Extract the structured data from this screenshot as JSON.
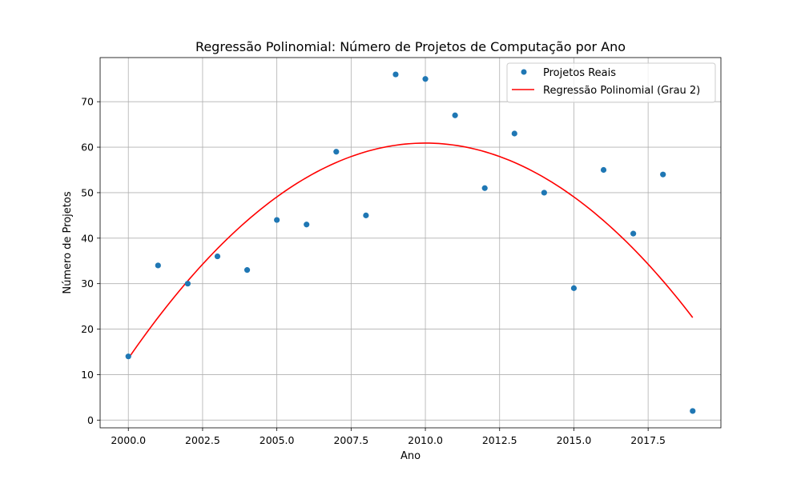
{
  "chart_data": {
    "type": "scatter",
    "title": "Regressão Polinomial: Número de Projetos de Computação por Ano",
    "xlabel": "Ano",
    "ylabel": "Número de Projetos",
    "xlim": [
      1999.05,
      2019.95
    ],
    "ylim": [
      -1.7,
      79.7
    ],
    "xticks": [
      2000.0,
      2002.5,
      2005.0,
      2007.5,
      2010.0,
      2012.5,
      2015.0,
      2017.5
    ],
    "xtick_labels": [
      "2000.0",
      "2002.5",
      "2005.0",
      "2007.5",
      "2010.0",
      "2012.5",
      "2015.0",
      "2017.5"
    ],
    "yticks": [
      0,
      10,
      20,
      30,
      40,
      50,
      60,
      70
    ],
    "ytick_labels": [
      "0",
      "10",
      "20",
      "30",
      "40",
      "50",
      "60",
      "70"
    ],
    "grid": true,
    "legend_position": "top-right",
    "series": [
      {
        "name": "Projetos Reais",
        "kind": "scatter",
        "color": "#1f77b4",
        "x": [
          2000,
          2001,
          2002,
          2003,
          2004,
          2005,
          2006,
          2007,
          2008,
          2009,
          2010,
          2011,
          2012,
          2013,
          2014,
          2015,
          2016,
          2017,
          2018,
          2019
        ],
        "y": [
          14,
          34,
          30,
          36,
          33,
          44,
          43,
          59,
          45,
          76,
          75,
          67,
          51,
          63,
          50,
          29,
          55,
          41,
          54,
          2
        ]
      },
      {
        "name": "Regressão Polinomial (Grau 2)",
        "kind": "line",
        "color": "#ff0000",
        "polynomial": {
          "degree": 2,
          "vertex_x": 2010.0,
          "vertex_y": 60.9,
          "a": -0.4735
        },
        "x_range": [
          2000,
          2019
        ]
      }
    ]
  }
}
